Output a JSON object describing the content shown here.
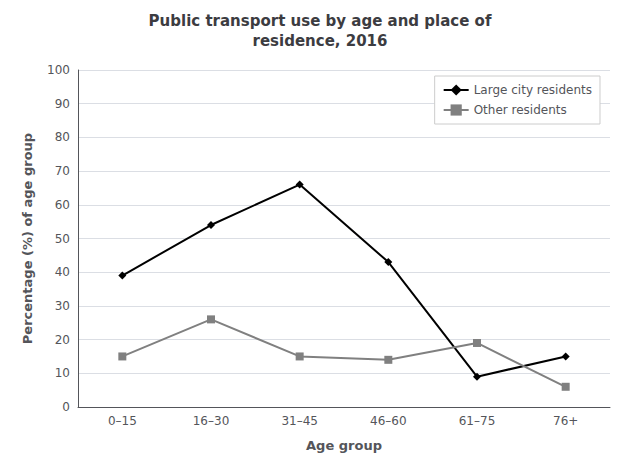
{
  "chart_data": {
    "type": "line",
    "title": "Public transport use by age and place of\nresidence, 2016",
    "x_label": "Age group",
    "y_label": "Percentage (%) of age group",
    "categories": [
      "0–15",
      "16–30",
      "31–45",
      "46–60",
      "61–75",
      "76+"
    ],
    "series": [
      {
        "name": "Large city residents",
        "color": "#000000",
        "marker": "diamond",
        "values": [
          39,
          54,
          66,
          43,
          9,
          15
        ]
      },
      {
        "name": "Other residents",
        "color": "#808080",
        "marker": "square",
        "values": [
          15,
          26,
          15,
          14,
          19,
          6
        ]
      }
    ],
    "ylim": [
      0,
      100
    ],
    "yticks": [
      0,
      10,
      20,
      30,
      40,
      50,
      60,
      70,
      80,
      90,
      100
    ],
    "grid": true,
    "legend": "upper right"
  }
}
